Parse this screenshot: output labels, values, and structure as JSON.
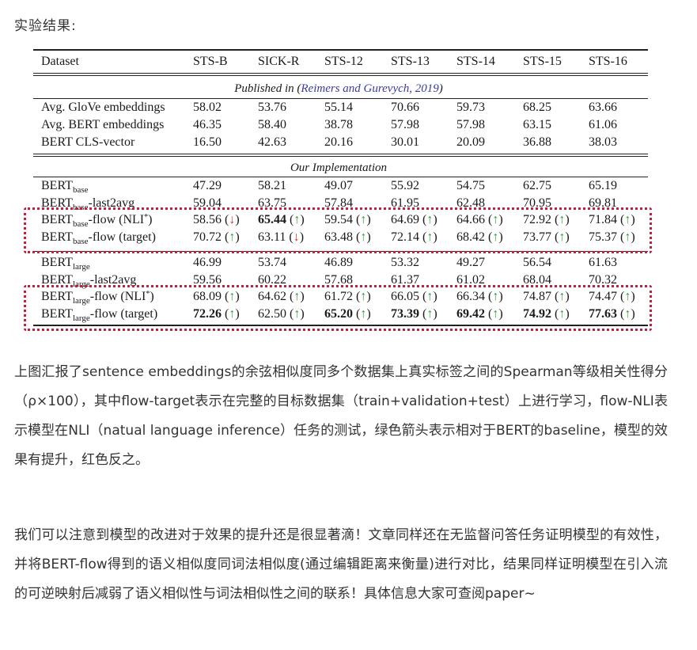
{
  "heading": "实验结果:",
  "table": {
    "headers": [
      "Dataset",
      "STS-B",
      "SICK-R",
      "STS-12",
      "STS-13",
      "STS-14",
      "STS-15",
      "STS-16"
    ],
    "section1": {
      "prefix": "Published in (",
      "cite": "Reimers and Gurevych, 2019",
      "suffix": ")"
    },
    "published_rows": [
      {
        "name": "Avg. GloVe embeddings",
        "values": [
          "58.02",
          "53.76",
          "55.14",
          "70.66",
          "59.73",
          "68.25",
          "63.66"
        ]
      },
      {
        "name": "Avg. BERT embeddings",
        "values": [
          "46.35",
          "58.40",
          "38.78",
          "57.98",
          "57.98",
          "63.15",
          "61.06"
        ]
      },
      {
        "name": "BERT CLS-vector",
        "values": [
          "16.50",
          "42.63",
          "20.16",
          "30.01",
          "20.09",
          "36.88",
          "38.03"
        ]
      }
    ],
    "section2": "Our Implementation",
    "impl_rows": [
      {
        "base": "BERT",
        "sub": "base",
        "suffix": "",
        "values": [
          "47.29",
          "58.21",
          "49.07",
          "55.92",
          "54.75",
          "62.75",
          "65.19"
        ]
      },
      {
        "base": "BERT",
        "sub": "base",
        "suffix": "-last2avg",
        "values": [
          "59.04",
          "63.75",
          "57.84",
          "61.95",
          "62.48",
          "70.95",
          "69.81"
        ]
      },
      {
        "base": "BERT",
        "sub": "base",
        "suffix": "-flow (NLI*)",
        "values": [
          "58.56",
          "65.44",
          "59.54",
          "64.69",
          "64.66",
          "72.92",
          "71.84"
        ],
        "arrows": [
          "↓",
          "↑",
          "↑",
          "↑",
          "↑",
          "↑",
          "↑"
        ],
        "bold": [
          false,
          true,
          false,
          false,
          false,
          false,
          false
        ]
      },
      {
        "base": "BERT",
        "sub": "base",
        "suffix": "-flow (target)",
        "values": [
          "70.72",
          "63.11",
          "63.48",
          "72.14",
          "68.42",
          "73.77",
          "75.37"
        ],
        "arrows": [
          "↑",
          "↓",
          "↑",
          "↑",
          "↑",
          "↑",
          "↑"
        ],
        "bold": [
          false,
          false,
          false,
          false,
          false,
          false,
          false
        ]
      },
      {
        "base": "BERT",
        "sub": "large",
        "suffix": "",
        "values": [
          "46.99",
          "53.74",
          "46.89",
          "53.32",
          "49.27",
          "56.54",
          "61.63"
        ]
      },
      {
        "base": "BERT",
        "sub": "large",
        "suffix": "-last2avg",
        "values": [
          "59.56",
          "60.22",
          "57.68",
          "61.37",
          "61.02",
          "68.04",
          "70.32"
        ]
      },
      {
        "base": "BERT",
        "sub": "large",
        "suffix": "-flow (NLI*)",
        "values": [
          "68.09",
          "64.62",
          "61.72",
          "66.05",
          "66.34",
          "74.87",
          "74.47"
        ],
        "arrows": [
          "↑",
          "↑",
          "↑",
          "↑",
          "↑",
          "↑",
          "↑"
        ],
        "bold": [
          false,
          false,
          false,
          false,
          false,
          false,
          false
        ]
      },
      {
        "base": "BERT",
        "sub": "large",
        "suffix": "-flow (target)",
        "values": [
          "72.26",
          "62.50",
          "65.20",
          "73.39",
          "69.42",
          "74.92",
          "77.63"
        ],
        "arrows": [
          "↑",
          "↑",
          "↑",
          "↑",
          "↑",
          "↑",
          "↑"
        ],
        "bold": [
          true,
          false,
          true,
          true,
          true,
          true,
          true
        ]
      }
    ]
  },
  "paragraph1": "上图汇报了sentence embeddings的余弦相似度同多个数据集上真实标签之间的Spearman等级相关性得分（ρ×100），其中flow-target表示在完整的目标数据集（train+validation+test）上进行学习，flow-NLI表示模型在NLI（natual language inference）任务的测试，绿色箭头表示相对于BERT的baseline，模型的效果有提升，红色反之。",
  "paragraph2": "我们可以注意到模型的改进对于效果的提升还是很显著滴！文章同样还在无监督问答任务证明模型的有效性，并将BERT-flow得到的语义相似度同词法相似度(通过编辑距离来衡量)进行对比，结果同样证明模型在引入流的可逆映射后减弱了语义相似性与词法相似性之间的联系！具体信息大家可查阅paper~",
  "colors": {
    "arrow_up": "#2a9d3a",
    "arrow_down": "#d63030",
    "highlight_box": "#c81e3a",
    "citation": "#3a3aa0"
  }
}
